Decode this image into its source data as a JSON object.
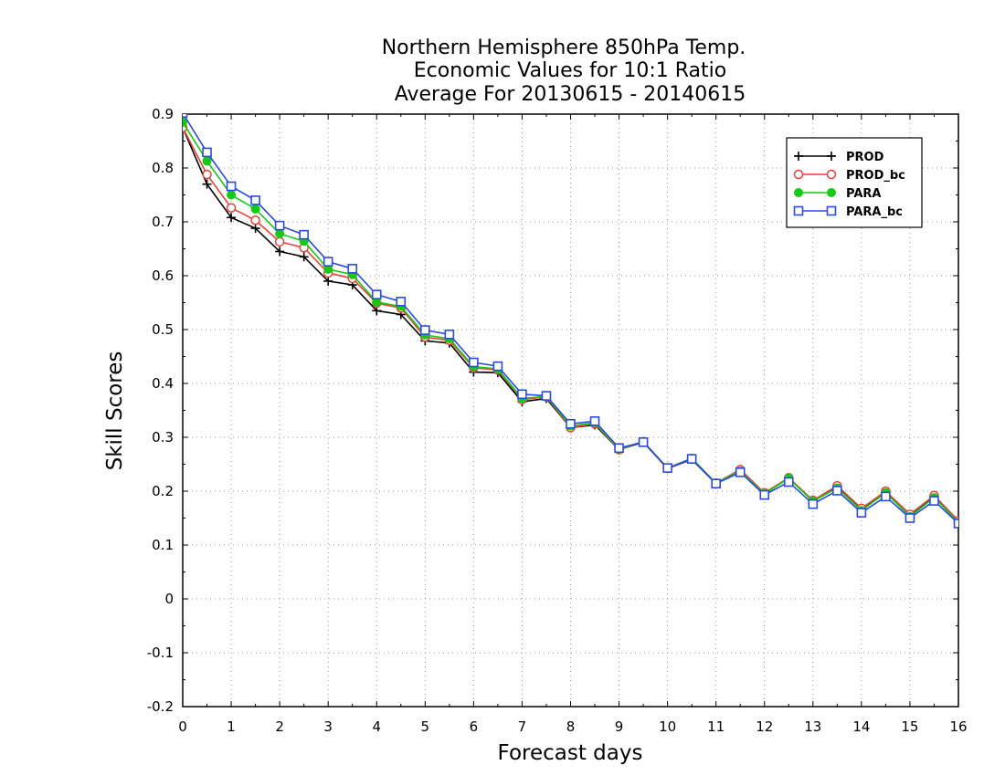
{
  "chart_data": {
    "type": "line",
    "title_lines": [
      "Northern Hemisphere 850hPa Temp.",
      "Economic Values for 10:1 Ratio",
      "Average For 20130615 - 20140615"
    ],
    "xlabel": "Forecast days",
    "ylabel": "Skill Scores",
    "xlim": [
      0,
      16
    ],
    "ylim": [
      -0.2,
      0.9
    ],
    "xticks": [
      "0",
      "1",
      "2",
      "3",
      "4",
      "5",
      "6",
      "7",
      "8",
      "9",
      "10",
      "11",
      "12",
      "13",
      "14",
      "15",
      "16"
    ],
    "yticks": [
      "0.9",
      "0.8",
      "0.7",
      "0.6",
      "0.5",
      "0.4",
      "0.3",
      "0.2",
      "0.1",
      "0",
      "-0.1",
      "-0.2"
    ],
    "grid": true,
    "legend_position": "top-right",
    "x": [
      0,
      0.5,
      1,
      1.5,
      2,
      2.5,
      3,
      3.5,
      4,
      4.5,
      5,
      5.5,
      6,
      6.5,
      7,
      7.5,
      8,
      8.5,
      9,
      9.5,
      10,
      10.5,
      11,
      11.5,
      12,
      12.5,
      13,
      13.5,
      14,
      14.5,
      15,
      15.5,
      16
    ],
    "series": [
      {
        "name": "PROD",
        "color": "#000000",
        "marker": "plus",
        "values": [
          0.875,
          0.77,
          0.708,
          0.688,
          0.645,
          0.635,
          0.59,
          0.583,
          0.535,
          0.528,
          0.479,
          0.475,
          0.421,
          0.42,
          0.366,
          0.372,
          0.318,
          0.323,
          0.277,
          0.291,
          0.242,
          0.259,
          0.214,
          0.24,
          0.196,
          0.224,
          0.182,
          0.208,
          0.167,
          0.198,
          0.155,
          0.19,
          0.143
        ]
      },
      {
        "name": "PROD_bc",
        "color": "#e8413a",
        "marker": "circle-open",
        "values": [
          0.875,
          0.788,
          0.726,
          0.703,
          0.663,
          0.652,
          0.605,
          0.595,
          0.549,
          0.54,
          0.486,
          0.48,
          0.429,
          0.425,
          0.37,
          0.375,
          0.318,
          0.325,
          0.277,
          0.292,
          0.242,
          0.26,
          0.215,
          0.24,
          0.197,
          0.225,
          0.183,
          0.21,
          0.168,
          0.2,
          0.157,
          0.192,
          0.145
        ]
      },
      {
        "name": "PARA",
        "color": "#17c917",
        "marker": "circle-filled",
        "values": [
          0.885,
          0.813,
          0.75,
          0.724,
          0.678,
          0.664,
          0.612,
          0.602,
          0.551,
          0.543,
          0.49,
          0.483,
          0.431,
          0.427,
          0.372,
          0.376,
          0.321,
          0.327,
          0.278,
          0.292,
          0.243,
          0.261,
          0.215,
          0.237,
          0.195,
          0.224,
          0.181,
          0.206,
          0.164,
          0.197,
          0.153,
          0.188,
          0.142
        ]
      },
      {
        "name": "PARA_bc",
        "color": "#2a4be0",
        "marker": "square-open",
        "values": [
          0.902,
          0.829,
          0.766,
          0.74,
          0.693,
          0.676,
          0.626,
          0.613,
          0.565,
          0.552,
          0.499,
          0.491,
          0.439,
          0.432,
          0.38,
          0.377,
          0.325,
          0.33,
          0.28,
          0.291,
          0.243,
          0.26,
          0.214,
          0.235,
          0.193,
          0.217,
          0.176,
          0.201,
          0.16,
          0.19,
          0.15,
          0.182,
          0.14
        ]
      }
    ]
  }
}
